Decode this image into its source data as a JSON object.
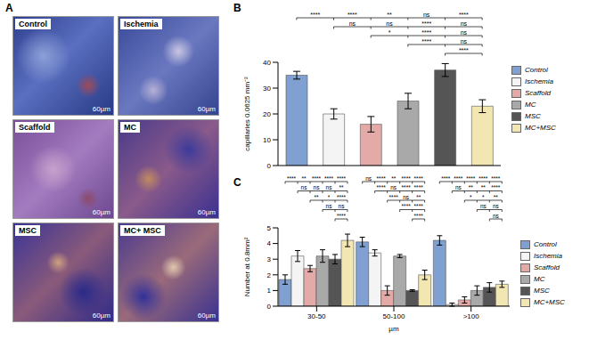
{
  "panel_a": {
    "letter": "A",
    "images": [
      {
        "label": "Control",
        "scale_bar": "60µm"
      },
      {
        "label": "Ischemia",
        "scale_bar": "60µm"
      },
      {
        "label": "Scaffold",
        "scale_bar": "60µm"
      },
      {
        "label": "MC",
        "scale_bar": "60µm"
      },
      {
        "label": "MSC",
        "scale_bar": "60µm"
      },
      {
        "label": "MC+ MSC",
        "scale_bar": "60µm"
      }
    ]
  },
  "chart_data": [
    {
      "letter": "B",
      "type": "bar",
      "y_label": "capillaries 0.0625 mm⁻²",
      "categories": [
        "Control",
        "Ischemia",
        "Scaffold",
        "MC",
        "MSC",
        "MC+MSC"
      ],
      "values": [
        35,
        20,
        16,
        25,
        37,
        23
      ],
      "errors": [
        1.5,
        2,
        3,
        3,
        2.5,
        2.5
      ],
      "colors": [
        "#7fa0d0",
        "#f4f4f4",
        "#e3aaa8",
        "#a9a9a9",
        "#555555",
        "#f2e6b3"
      ],
      "ylim": [
        0,
        40
      ],
      "yticks": [
        0,
        10,
        20,
        30,
        40
      ],
      "tick_labels": "y",
      "legend": "right",
      "significance": [
        {
          "from": 0,
          "to": 1,
          "label": "****"
        },
        {
          "from": 0,
          "to": 2,
          "label": "****"
        },
        {
          "from": 0,
          "to": 3,
          "label": "**"
        },
        {
          "from": 0,
          "to": 4,
          "label": "ns"
        },
        {
          "from": 0,
          "to": 5,
          "label": "****"
        },
        {
          "from": 1,
          "to": 2,
          "label": "ns"
        },
        {
          "from": 1,
          "to": 3,
          "label": "ns"
        },
        {
          "from": 1,
          "to": 4,
          "label": "****"
        },
        {
          "from": 1,
          "to": 5,
          "label": "ns"
        },
        {
          "from": 2,
          "to": 3,
          "label": "*"
        },
        {
          "from": 2,
          "to": 4,
          "label": "****"
        },
        {
          "from": 2,
          "to": 5,
          "label": "ns"
        },
        {
          "from": 3,
          "to": 4,
          "label": "****"
        },
        {
          "from": 3,
          "to": 5,
          "label": "ns"
        },
        {
          "from": 4,
          "to": 5,
          "label": "****"
        }
      ]
    },
    {
      "letter": "C",
      "type": "bar",
      "y_label": "Number at 0.8mm²",
      "x_label": "µm",
      "categories": [
        "30-50",
        "50-100",
        ">100"
      ],
      "series": [
        {
          "name": "Control",
          "color": "#7fa0d0",
          "values": [
            1.7,
            4.1,
            4.2
          ],
          "errors": [
            0.3,
            0.3,
            0.3
          ]
        },
        {
          "name": "Ischemia",
          "color": "#f4f4f4",
          "values": [
            3.2,
            3.4,
            0.1
          ],
          "errors": [
            0.35,
            0.2,
            0.1
          ]
        },
        {
          "name": "Scaffold",
          "color": "#e3aaa8",
          "values": [
            2.4,
            1.0,
            0.4
          ],
          "errors": [
            0.2,
            0.3,
            0.2
          ]
        },
        {
          "name": "MC",
          "color": "#a9a9a9",
          "values": [
            3.2,
            3.2,
            1.0
          ],
          "errors": [
            0.4,
            0.1,
            0.3
          ]
        },
        {
          "name": "MSC",
          "color": "#555555",
          "values": [
            3.0,
            1.0,
            1.2
          ],
          "errors": [
            0.3,
            0.05,
            0.3
          ]
        },
        {
          "name": "MC+MSC",
          "color": "#f2e6b3",
          "values": [
            4.2,
            2.0,
            1.4
          ],
          "errors": [
            0.4,
            0.3,
            0.2
          ]
        }
      ],
      "ylim": [
        0,
        5
      ],
      "yticks": [
        0,
        1,
        2,
        3,
        4,
        5
      ],
      "legend": "right",
      "significance": [
        {
          "category": "30-50",
          "from": 0,
          "to": 1,
          "label": "****"
        },
        {
          "category": "30-50",
          "from": 0,
          "to": 2,
          "label": "**"
        },
        {
          "category": "30-50",
          "from": 0,
          "to": 3,
          "label": "****"
        },
        {
          "category": "30-50",
          "from": 0,
          "to": 4,
          "label": "****"
        },
        {
          "category": "30-50",
          "from": 0,
          "to": 5,
          "label": "****"
        },
        {
          "category": "30-50",
          "from": 1,
          "to": 2,
          "label": "ns"
        },
        {
          "category": "30-50",
          "from": 1,
          "to": 3,
          "label": "ns"
        },
        {
          "category": "30-50",
          "from": 1,
          "to": 4,
          "label": "ns"
        },
        {
          "category": "30-50",
          "from": 1,
          "to": 5,
          "label": "**"
        },
        {
          "category": "30-50",
          "from": 2,
          "to": 3,
          "label": "**"
        },
        {
          "category": "30-50",
          "from": 2,
          "to": 4,
          "label": "*"
        },
        {
          "category": "30-50",
          "from": 2,
          "to": 5,
          "label": "****"
        },
        {
          "category": "30-50",
          "from": 3,
          "to": 4,
          "label": "ns"
        },
        {
          "category": "30-50",
          "from": 3,
          "to": 5,
          "label": "ns"
        },
        {
          "category": "30-50",
          "from": 4,
          "to": 5,
          "label": "****"
        },
        {
          "category": "50-100",
          "from": 0,
          "to": 1,
          "label": "ns"
        },
        {
          "category": "50-100",
          "from": 0,
          "to": 2,
          "label": "****"
        },
        {
          "category": "50-100",
          "from": 0,
          "to": 3,
          "label": "**"
        },
        {
          "category": "50-100",
          "from": 0,
          "to": 4,
          "label": "****"
        },
        {
          "category": "50-100",
          "from": 0,
          "to": 5,
          "label": "****"
        },
        {
          "category": "50-100",
          "from": 1,
          "to": 2,
          "label": "****"
        },
        {
          "category": "50-100",
          "from": 1,
          "to": 3,
          "label": "ns"
        },
        {
          "category": "50-100",
          "from": 1,
          "to": 4,
          "label": "****"
        },
        {
          "category": "50-100",
          "from": 1,
          "to": 5,
          "label": "****"
        },
        {
          "category": "50-100",
          "from": 2,
          "to": 3,
          "label": "****"
        },
        {
          "category": "50-100",
          "from": 2,
          "to": 4,
          "label": "ns"
        },
        {
          "category": "50-100",
          "from": 2,
          "to": 5,
          "label": "**"
        },
        {
          "category": "50-100",
          "from": 3,
          "to": 4,
          "label": "****"
        },
        {
          "category": "50-100",
          "from": 3,
          "to": 5,
          "label": "****"
        },
        {
          "category": "50-100",
          "from": 4,
          "to": 5,
          "label": "****"
        },
        {
          "category": ">100",
          "from": 0,
          "to": 1,
          "label": "****"
        },
        {
          "category": ">100",
          "from": 0,
          "to": 2,
          "label": "****"
        },
        {
          "category": ">100",
          "from": 0,
          "to": 3,
          "label": "****"
        },
        {
          "category": ">100",
          "from": 0,
          "to": 4,
          "label": "****"
        },
        {
          "category": ">100",
          "from": 0,
          "to": 5,
          "label": "****"
        },
        {
          "category": ">100",
          "from": 1,
          "to": 2,
          "label": "ns"
        },
        {
          "category": ">100",
          "from": 1,
          "to": 3,
          "label": "**"
        },
        {
          "category": ">100",
          "from": 1,
          "to": 4,
          "label": "**"
        },
        {
          "category": ">100",
          "from": 1,
          "to": 5,
          "label": "****"
        },
        {
          "category": ">100",
          "from": 2,
          "to": 3,
          "label": "*"
        },
        {
          "category": ">100",
          "from": 2,
          "to": 4,
          "label": "*"
        },
        {
          "category": ">100",
          "from": 2,
          "to": 5,
          "label": "**"
        },
        {
          "category": ">100",
          "from": 3,
          "to": 4,
          "label": "ns"
        },
        {
          "category": ">100",
          "from": 3,
          "to": 5,
          "label": "ns"
        },
        {
          "category": ">100",
          "from": 4,
          "to": 5,
          "label": "ns"
        }
      ]
    }
  ]
}
